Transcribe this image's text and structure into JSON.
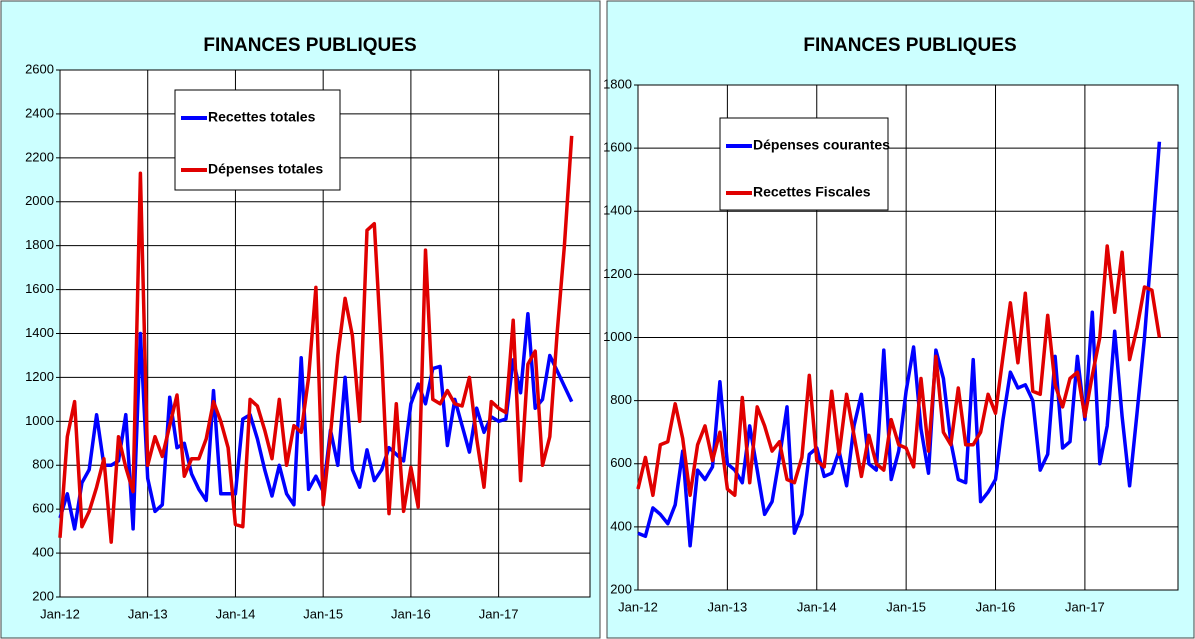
{
  "chart_data": [
    {
      "type": "line",
      "title": "FINANCES PUBLIQUES",
      "categories": [
        "Jan-12",
        null,
        null,
        null,
        null,
        null,
        null,
        null,
        null,
        null,
        null,
        null,
        "Jan-13",
        null,
        null,
        null,
        null,
        null,
        null,
        null,
        null,
        null,
        null,
        null,
        "Jan-14",
        null,
        null,
        null,
        null,
        null,
        null,
        null,
        null,
        null,
        null,
        null,
        "Jan-15",
        null,
        null,
        null,
        null,
        null,
        null,
        null,
        null,
        null,
        null,
        null,
        "Jan-16",
        null,
        null,
        null,
        null,
        null,
        null,
        null,
        null,
        null,
        null,
        null,
        "Jan-17",
        null,
        null,
        null,
        null,
        null,
        null,
        null,
        null,
        null,
        null
      ],
      "series": [
        {
          "name": "Recettes totales",
          "color": "#0000ff",
          "values": [
            560,
            670,
            510,
            720,
            780,
            1030,
            800,
            800,
            820,
            1030,
            510,
            1400,
            740,
            590,
            620,
            1110,
            880,
            900,
            760,
            690,
            640,
            1140,
            670,
            670,
            670,
            1010,
            1030,
            920,
            780,
            660,
            800,
            670,
            620,
            1290,
            690,
            750,
            680,
            960,
            800,
            1200,
            780,
            700,
            870,
            730,
            780,
            880,
            850,
            820,
            1080,
            1170,
            1080,
            1240,
            1250,
            890,
            1100,
            980,
            860,
            1060,
            950,
            1020,
            1000,
            1010,
            1280,
            1130,
            1490,
            1060,
            1100,
            1300,
            1230,
            1160,
            1090
          ]
        },
        {
          "name": "Dépenses totales",
          "color": "#e00000",
          "values": [
            470,
            930,
            1090,
            520,
            590,
            700,
            830,
            450,
            930,
            790,
            680,
            2130,
            800,
            930,
            840,
            980,
            1120,
            750,
            830,
            830,
            920,
            1090,
            1000,
            880,
            530,
            520,
            1100,
            1070,
            960,
            830,
            1100,
            800,
            980,
            950,
            1200,
            1610,
            620,
            940,
            1300,
            1560,
            1390,
            1000,
            1870,
            1900,
            1300,
            580,
            1080,
            590,
            790,
            610,
            1780,
            1100,
            1080,
            1140,
            1080,
            1070,
            1200,
            920,
            700,
            1090,
            1060,
            1040,
            1460,
            730,
            1260,
            1320,
            800,
            930,
            1400,
            1800,
            2300
          ]
        }
      ],
      "ylim": [
        200,
        2600
      ],
      "yticks": [
        200,
        400,
        600,
        800,
        1000,
        1200,
        1400,
        1600,
        1800,
        2000,
        2200,
        2400,
        2600
      ],
      "grid": true
    },
    {
      "type": "line",
      "title": "FINANCES PUBLIQUES",
      "categories": [
        "Jan-12",
        null,
        null,
        null,
        null,
        null,
        null,
        null,
        null,
        null,
        null,
        null,
        "Jan-13",
        null,
        null,
        null,
        null,
        null,
        null,
        null,
        null,
        null,
        null,
        null,
        "Jan-14",
        null,
        null,
        null,
        null,
        null,
        null,
        null,
        null,
        null,
        null,
        null,
        "Jan-15",
        null,
        null,
        null,
        null,
        null,
        null,
        null,
        null,
        null,
        null,
        null,
        "Jan-16",
        null,
        null,
        null,
        null,
        null,
        null,
        null,
        null,
        null,
        null,
        null,
        "Jan-17",
        null,
        null,
        null,
        null,
        null,
        null,
        null,
        null,
        null,
        null
      ],
      "series": [
        {
          "name": "Dépenses courantes",
          "color": "#0000ff",
          "values": [
            380,
            370,
            460,
            440,
            410,
            470,
            640,
            340,
            580,
            550,
            590,
            860,
            600,
            580,
            540,
            720,
            580,
            440,
            480,
            620,
            780,
            380,
            440,
            630,
            650,
            560,
            570,
            640,
            530,
            720,
            820,
            600,
            580,
            960,
            550,
            640,
            830,
            970,
            710,
            570,
            960,
            870,
            670,
            550,
            540,
            930,
            480,
            510,
            550,
            740,
            890,
            840,
            850,
            800,
            580,
            630,
            940,
            650,
            670,
            940,
            740,
            1080,
            600,
            720,
            1020,
            750,
            530,
            760,
            1000,
            1300,
            1620
          ]
        },
        {
          "name": "Recettes Fiscales",
          "color": "#e00000",
          "values": [
            520,
            620,
            500,
            660,
            670,
            790,
            680,
            500,
            660,
            720,
            610,
            700,
            520,
            500,
            810,
            540,
            780,
            720,
            640,
            670,
            550,
            540,
            620,
            880,
            610,
            590,
            830,
            630,
            820,
            690,
            560,
            690,
            600,
            580,
            740,
            660,
            650,
            590,
            870,
            640,
            940,
            700,
            660,
            840,
            660,
            660,
            700,
            820,
            760,
            940,
            1110,
            920,
            1140,
            830,
            820,
            1070,
            850,
            780,
            870,
            890,
            750,
            880,
            1000,
            1290,
            1080,
            1270,
            930,
            1030,
            1160,
            1150,
            1000
          ]
        }
      ],
      "ylim": [
        200,
        1800
      ],
      "yticks": [
        200,
        400,
        600,
        800,
        1000,
        1200,
        1400,
        1600,
        1800
      ],
      "grid": true
    }
  ]
}
